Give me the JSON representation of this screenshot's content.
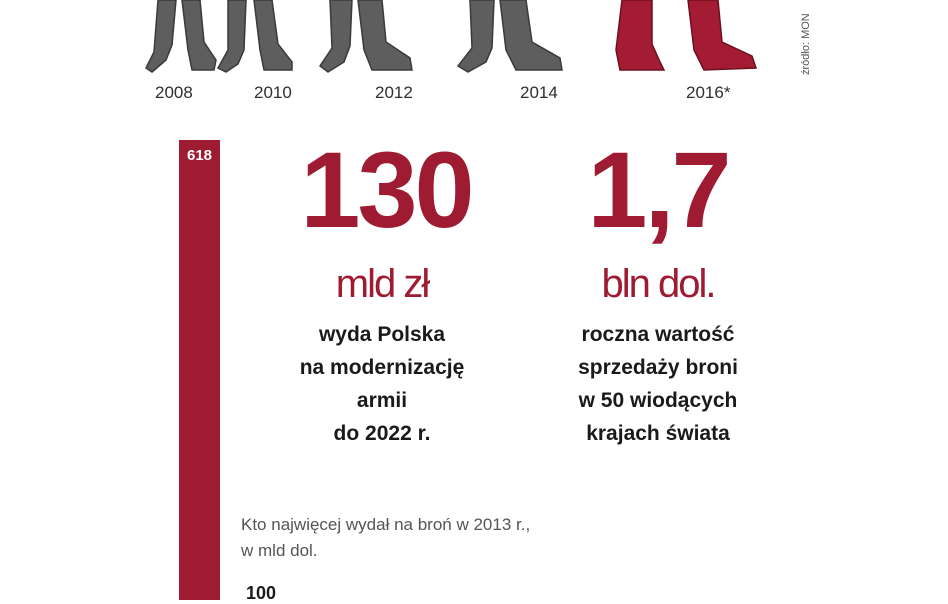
{
  "timeline": {
    "years": [
      "2008",
      "2010",
      "2012",
      "2014",
      "2016*"
    ],
    "colors": {
      "past": "#5d5d5d",
      "current": "#a31c34"
    }
  },
  "source_text": "źródło: MON",
  "bar": {
    "value_label": "618",
    "color": "#9e1b32"
  },
  "stat_left": {
    "value": "130",
    "unit": "mld zł",
    "lines": [
      "wyda Polska",
      "na modernizację",
      "armii",
      "do 2022 r."
    ]
  },
  "stat_right": {
    "value": "1,7",
    "unit": "bln dol.",
    "lines": [
      "roczna wartość",
      "sprzedaży broni",
      "w 50 wiodących",
      "krajach świata"
    ]
  },
  "question": {
    "line1": "Kto najwięcej wydał na broń w 2013 r.,",
    "line2": "w mld dol."
  },
  "bottom_value": "100"
}
